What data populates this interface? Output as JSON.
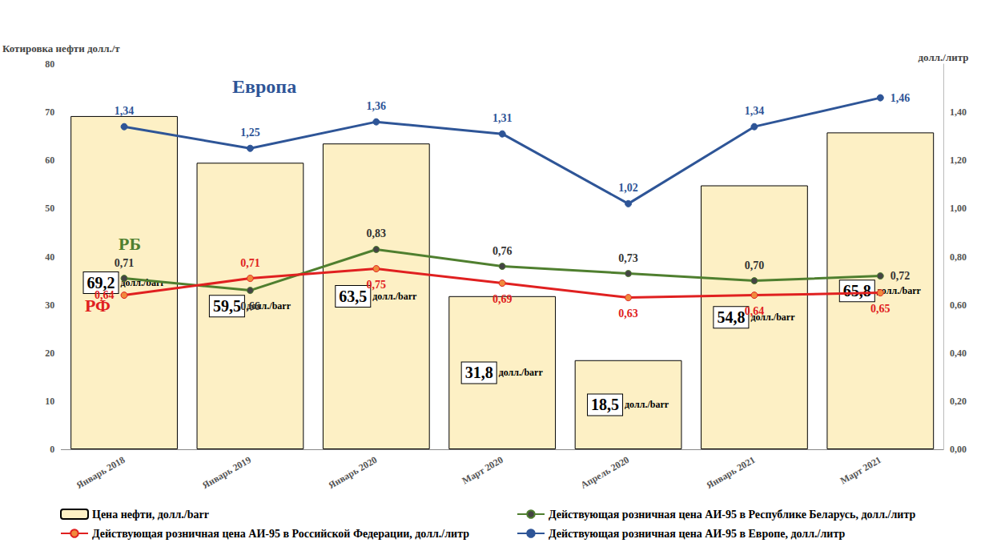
{
  "chart_data": {
    "type": "bar",
    "categories": [
      "Январь 2018",
      "Январь 2019",
      "Январь 2020",
      "Март 2020",
      "Апрель 2020",
      "Январь 2021",
      "Март 2021"
    ],
    "series": [
      {
        "name": "Цена нефти, долл./barr",
        "type": "bar",
        "color": "#fdf0c5",
        "values": [
          69.2,
          59.5,
          63.5,
          31.8,
          18.5,
          54.8,
          65.8
        ],
        "value_labels": [
          "69,2 долл./barr",
          "59,5 долл./barr",
          "63,5 долл./barr",
          "31,8 долл./barr",
          "18,5 долл./barr",
          "54,8 долл./barr",
          "65,8 долл./barr"
        ]
      },
      {
        "name": "Действующая розничная цена АИ-95 в Республике Беларусь, долл./литр",
        "type": "line",
        "axis": "y2",
        "color": "#4f7f2f",
        "marker": "circle",
        "values": [
          0.71,
          0.66,
          0.83,
          0.76,
          0.73,
          0.7,
          0.72
        ],
        "value_labels": [
          "0,71",
          "0,66",
          "0,83",
          "0,76",
          "0,73",
          "0,70",
          "0,72"
        ]
      },
      {
        "name": "Действующая розничная цена АИ-95 в Российской Федерации, долл./литр",
        "type": "line",
        "axis": "y2",
        "color": "#e02020",
        "marker": "circle",
        "values": [
          0.64,
          0.71,
          0.75,
          0.69,
          0.63,
          0.64,
          0.65
        ],
        "value_labels": [
          "0,64",
          "0,71",
          "0,75",
          "0,69",
          "0,63",
          "0,64",
          "0,65"
        ]
      },
      {
        "name": "Действующая розничная цена АИ-95 в Европе, долл./литр",
        "type": "line",
        "axis": "y2",
        "color": "#2e5597",
        "marker": "circle",
        "values": [
          1.34,
          1.25,
          1.36,
          1.31,
          1.02,
          1.34,
          1.46
        ],
        "value_labels": [
          "1,34",
          "1,25",
          "1,36",
          "1,31",
          "1,02",
          "1,34",
          "1,46"
        ]
      }
    ],
    "y_label": "Котировка нефти долл./т",
    "y2_label": "долл./литр",
    "ylim": [
      0,
      80
    ],
    "yticks": [
      0,
      10,
      20,
      30,
      40,
      50,
      60,
      70,
      80
    ],
    "y2lim": [
      0,
      1.6
    ],
    "y2ticks": [
      {
        "value": 0,
        "label": "0,00"
      },
      {
        "value": 0.2,
        "label": "0,20"
      },
      {
        "value": 0.4,
        "label": "0,40"
      },
      {
        "value": 0.6,
        "label": "0,60"
      },
      {
        "value": 0.8,
        "label": "0,80"
      },
      {
        "value": 1.0,
        "label": "1,00"
      },
      {
        "value": 1.2,
        "label": "1,20"
      },
      {
        "value": 1.4,
        "label": "1,40"
      }
    ],
    "annotations": [
      {
        "text": "Европа",
        "color": "#2e5597"
      },
      {
        "text": "РБ",
        "color": "#4f7f2f"
      },
      {
        "text": "РФ",
        "color": "#e02020"
      }
    ],
    "data_labels": true,
    "grid": false,
    "legend": "bottom"
  }
}
